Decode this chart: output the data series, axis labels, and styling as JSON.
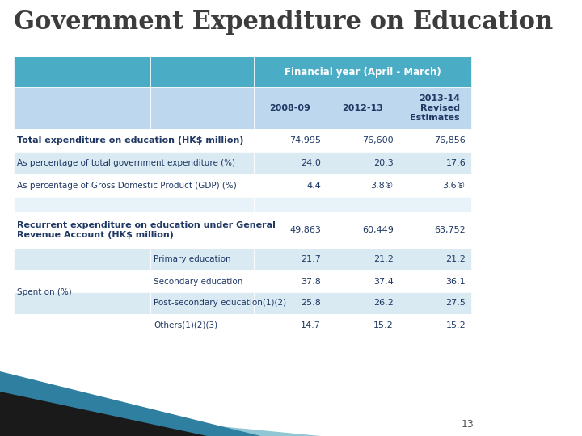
{
  "title": "Government Expenditure on Education",
  "background_color": "#ffffff",
  "header_bg_color": "#4BACC6",
  "subheader_bg_color": "#BDD7EE",
  "light_row_color": "#D9EAF3",
  "white_row_color": "#ffffff",
  "empty_row_color": "#E8F3F9",
  "page_number": "13",
  "col_header_text": "Financial year (April - March)",
  "col_years": [
    "2008-09",
    "2012-13",
    "2013-14\nRevised\nEstimates"
  ],
  "rows": [
    {
      "col1": "Total expenditure on education (HK$ million)",
      "col2": "",
      "col3": "",
      "values": [
        "74,995",
        "76,600",
        "76,856"
      ],
      "bold": true,
      "bg": "white",
      "span_label": true
    },
    {
      "col1": "As percentage of total government expenditure (%)",
      "col2": "",
      "col3": "",
      "values": [
        "24.0",
        "20.3",
        "17.6"
      ],
      "bold": false,
      "bg": "light",
      "span_label": true
    },
    {
      "col1": "As percentage of Gross Domestic Product (GDP) (%)",
      "col2": "",
      "col3": "",
      "values": [
        "4.4",
        "3.8®",
        "3.6®"
      ],
      "bold": false,
      "bg": "white",
      "span_label": true
    },
    {
      "col1": "",
      "col2": "",
      "col3": "",
      "values": [
        "",
        "",
        ""
      ],
      "bold": false,
      "bg": "empty",
      "span_label": true
    },
    {
      "col1": "Recurrent expenditure on education under General\nRevenue Account (HK$ million)",
      "col2": "",
      "col3": "",
      "values": [
        "49,863",
        "60,449",
        "63,752"
      ],
      "bold": true,
      "bg": "white",
      "span_label": true
    },
    {
      "col1": "",
      "col2": "",
      "col3": "Primary education",
      "values": [
        "21.7",
        "21.2",
        "21.2"
      ],
      "bold": false,
      "bg": "light",
      "span_label": false
    },
    {
      "col1": "",
      "col2": "Spent on (%)",
      "col3": "Secondary education",
      "values": [
        "37.8",
        "37.4",
        "36.1"
      ],
      "bold": false,
      "bg": "white",
      "span_label": false
    },
    {
      "col1": "",
      "col2": "",
      "col3": "Post-secondary education(1)(2)",
      "values": [
        "25.8",
        "26.2",
        "27.5"
      ],
      "bold": false,
      "bg": "light",
      "span_label": false
    },
    {
      "col1": "",
      "col2": "",
      "col3": "Others(1)(2)(3)",
      "values": [
        "14.7",
        "15.2",
        "15.2"
      ],
      "bold": false,
      "bg": "white",
      "span_label": false
    }
  ],
  "bottom_colors": {
    "dark_teal": "#2E7FA0",
    "black": "#1a1a1a",
    "light_teal": "#91C7D4"
  }
}
